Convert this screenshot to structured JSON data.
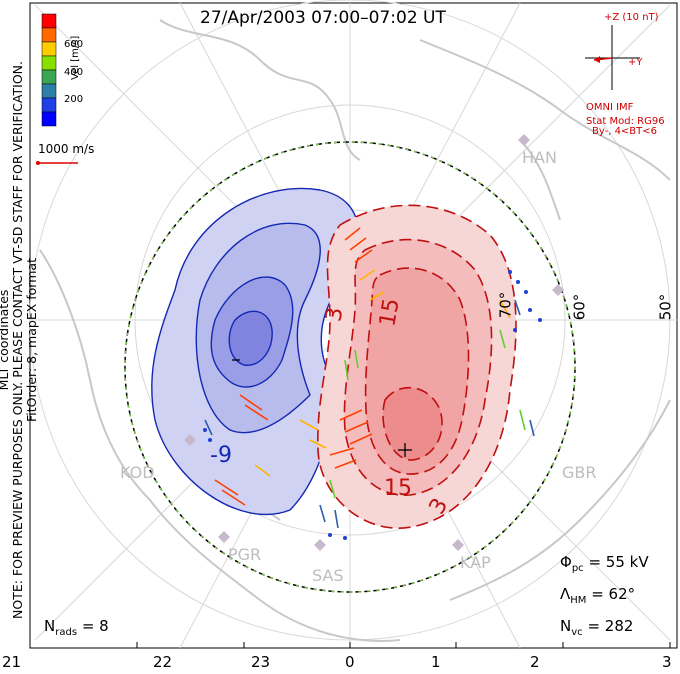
{
  "title": "27/Apr/2003 07:00–07:02 UT",
  "coordinates": "MLT coordinates",
  "format_note": "FitOrder: 8, mapEX format",
  "preview_note": "NOTE: FOR PREVIEW PURPOSES ONLY. PLEASE CONTACT VT-SD STAFF FOR VERIFICATION.",
  "colorbar": {
    "label": "Vel [m/s]",
    "ticks": [
      "600",
      "400",
      "200"
    ],
    "colors": [
      "#ff0000",
      "#ff6a00",
      "#ffcc00",
      "#88e000",
      "#3aa655",
      "#2e7fa8",
      "#1f40e6",
      "#0000ff"
    ]
  },
  "scale_vector": "1000 m/s",
  "imf": {
    "z_label": "+Z (10 nT)",
    "y_label": "+Y",
    "source": "OMNI IMF",
    "stat_mod": "Stat Mod: RG96",
    "condition": "By-, 4<BT<6"
  },
  "stations": [
    "HAN",
    "KOD",
    "PGR",
    "SAS",
    "KAP",
    "GBR"
  ],
  "latitude_labels": [
    "70°",
    "60°",
    "50°"
  ],
  "contour_labels": [
    "3",
    "15",
    "15",
    "3",
    "-9"
  ],
  "mlt_axis": [
    "21",
    "22",
    "23",
    "0",
    "1",
    "2",
    "3"
  ],
  "stats": {
    "phi_pc_label": "Φ",
    "phi_pc_sub": "pc",
    "phi_pc_value": "= 55 kV",
    "lambda_label": "Λ",
    "lambda_sub": "HM",
    "lambda_value": "= 62°",
    "nvc_label": "N",
    "nvc_sub": "vc",
    "nvc_value": "= 282",
    "nrads_label": "N",
    "nrads_sub": "rads",
    "nrads_value": "= 8"
  },
  "colors": {
    "dusk_cell": "#7070d8",
    "dawn_cell": "#f07070",
    "boundary": "#000000",
    "coast": "#c8c8c8"
  }
}
